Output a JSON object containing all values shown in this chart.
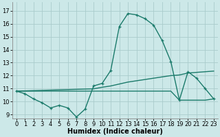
{
  "xlabel": "Humidex (Indice chaleur)",
  "background_color": "#cce8e8",
  "grid_color": "#aacccc",
  "line_color": "#1a7a6a",
  "xlim": [
    -0.5,
    23.5
  ],
  "ylim": [
    8.7,
    17.7
  ],
  "xticks": [
    0,
    1,
    2,
    3,
    4,
    5,
    6,
    7,
    8,
    9,
    10,
    11,
    12,
    13,
    14,
    15,
    16,
    17,
    18,
    19,
    20,
    21,
    22,
    23
  ],
  "yticks": [
    9,
    10,
    11,
    12,
    13,
    14,
    15,
    16,
    17
  ],
  "series1_x": [
    0,
    1,
    2,
    3,
    4,
    5,
    6,
    7,
    8,
    9,
    10,
    11,
    12,
    13,
    14,
    15,
    16,
    17,
    18,
    19,
    20,
    21,
    22,
    23
  ],
  "series1_y": [
    10.8,
    10.6,
    10.2,
    9.9,
    9.5,
    9.7,
    9.5,
    8.8,
    9.4,
    11.2,
    11.4,
    12.4,
    15.8,
    16.8,
    16.7,
    16.4,
    15.9,
    14.7,
    13.1,
    10.1,
    12.3,
    11.8,
    11.0,
    10.2
  ],
  "series2_x": [
    0,
    1,
    2,
    3,
    4,
    5,
    6,
    7,
    8,
    9,
    10,
    11,
    12,
    13,
    14,
    15,
    16,
    17,
    18,
    19,
    20,
    21,
    22,
    23
  ],
  "series2_y": [
    10.8,
    10.82,
    10.84,
    10.86,
    10.88,
    10.9,
    10.92,
    10.94,
    10.96,
    10.98,
    11.1,
    11.2,
    11.35,
    11.5,
    11.6,
    11.7,
    11.8,
    11.9,
    12.0,
    12.05,
    12.2,
    12.25,
    12.3,
    12.35
  ],
  "series3_x": [
    0,
    1,
    2,
    3,
    4,
    5,
    6,
    7,
    8,
    9,
    10,
    11,
    12,
    13,
    14,
    15,
    16,
    17,
    18,
    19,
    20,
    21,
    22,
    23
  ],
  "series3_y": [
    10.8,
    10.8,
    10.8,
    10.8,
    10.8,
    10.8,
    10.8,
    10.8,
    10.8,
    10.8,
    10.8,
    10.8,
    10.8,
    10.8,
    10.8,
    10.8,
    10.8,
    10.8,
    10.8,
    10.1,
    10.1,
    10.1,
    10.1,
    10.2
  ],
  "linewidth": 1.0,
  "tick_font_size": 6.0,
  "xlabel_font_size": 7.0
}
